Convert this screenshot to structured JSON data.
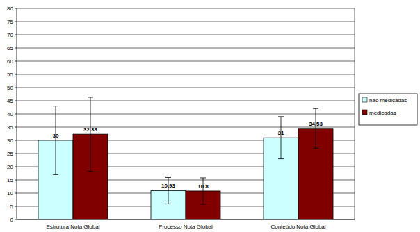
{
  "chart_data": {
    "type": "bar",
    "categories": [
      "Estrutura Nota Global",
      "Processo Nota Global",
      "Conteúdo Nota Global"
    ],
    "series": [
      {
        "name": "não medicadas",
        "color": "#ccffff",
        "values": [
          30,
          10.93,
          31
        ],
        "errors": [
          13,
          5,
          8
        ]
      },
      {
        "name": "medicadas",
        "color": "#800000",
        "values": [
          32.33,
          10.8,
          34.53
        ],
        "errors": [
          14,
          5,
          7.5
        ]
      }
    ],
    "ylim": [
      0,
      80
    ],
    "yticks": [
      0,
      5,
      10,
      15,
      20,
      25,
      30,
      35,
      40,
      45,
      50,
      55,
      60,
      65,
      70,
      75,
      80
    ],
    "grid": true,
    "data_labels": true,
    "legend": "right"
  }
}
